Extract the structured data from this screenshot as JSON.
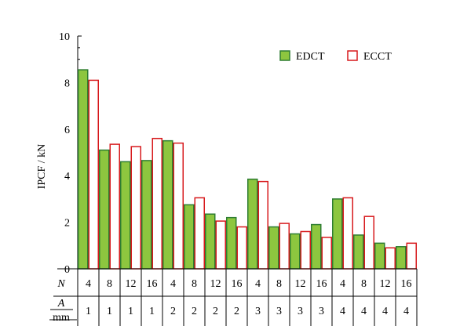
{
  "chart_data": {
    "type": "bar",
    "ylabel": "IPCF / kN",
    "ylim": [
      0,
      10
    ],
    "yticks": [
      0,
      2,
      4,
      6,
      8,
      10
    ],
    "grid": false,
    "legend_position": "top-right",
    "series": [
      {
        "name": "EDCT",
        "fill": "#8dc63f",
        "stroke": "#2e7d32",
        "values": [
          8.55,
          5.1,
          4.6,
          4.65,
          5.5,
          2.75,
          2.35,
          2.2,
          3.85,
          1.8,
          1.5,
          1.9,
          3.0,
          1.45,
          1.1,
          0.95
        ]
      },
      {
        "name": "ECCT",
        "fill": "#ffffff",
        "stroke": "#d7191c",
        "values": [
          8.1,
          5.35,
          5.25,
          5.6,
          5.4,
          3.05,
          2.05,
          1.8,
          3.75,
          1.95,
          1.6,
          1.35,
          3.05,
          2.25,
          0.9,
          1.1
        ]
      }
    ],
    "table": {
      "rows": [
        {
          "label": "N",
          "values": [
            "4",
            "8",
            "12",
            "16",
            "4",
            "8",
            "12",
            "16",
            "4",
            "8",
            "12",
            "16",
            "4",
            "8",
            "12",
            "16"
          ]
        },
        {
          "label_top": "A",
          "label_bottom": "mm",
          "values": [
            "1",
            "1",
            "1",
            "1",
            "2",
            "2",
            "2",
            "2",
            "3",
            "3",
            "3",
            "3",
            "4",
            "4",
            "4",
            "4"
          ]
        }
      ]
    }
  }
}
